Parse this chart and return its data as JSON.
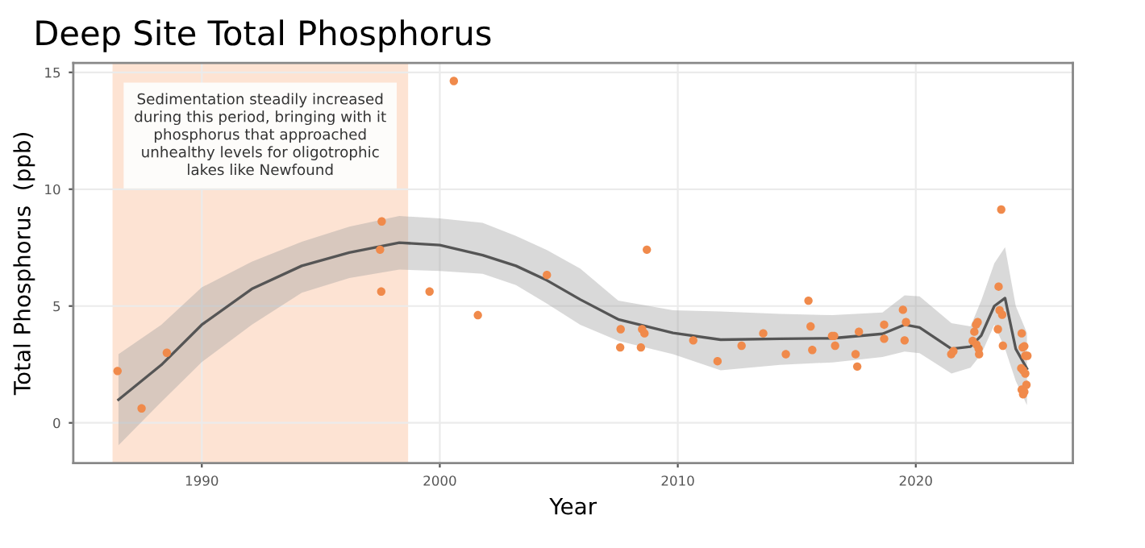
{
  "chart_data": {
    "type": "scatter",
    "title": "Deep Site Total Phosphorus",
    "xlabel": "Year",
    "ylabel": "Total Phosphorus  (ppb)",
    "annotations": [
      "Sedimentation steadily increased\nduring this period, bringing with it\nphosphorus that approached\nunhealthy levels for oligotrophic\nlakes like Newfound"
    ],
    "bands": [
      {
        "axis": "x",
        "from": 1986.25,
        "to": 1998.67,
        "color": "#fde3d3"
      }
    ],
    "xlim": [
      1984.6,
      2026.6
    ],
    "ylim": [
      -1.72,
      15.4
    ],
    "xticks": [
      1990,
      2000,
      2010,
      2020
    ],
    "yticks": [
      0,
      5,
      10,
      15
    ],
    "grid": true,
    "legend": false,
    "series": [
      {
        "marker": "circle",
        "color": "#f08a4b",
        "x": [
          1986.46,
          1987.47,
          1988.53,
          1997.56,
          1997.49,
          1997.54,
          1999.57,
          2000.59,
          2001.6,
          2004.5,
          2007.6,
          2007.58,
          2008.5,
          2008.6,
          2008.45,
          2008.7,
          2010.65,
          2011.67,
          2012.68,
          2013.59,
          2014.54,
          2015.49,
          2015.58,
          2015.65,
          2016.48,
          2016.57,
          2016.61,
          2017.47,
          2017.54,
          2017.61,
          2018.67,
          2018.67,
          2019.46,
          2019.59,
          2019.53,
          2021.49,
          2021.58,
          2022.39,
          2022.46,
          2022.53,
          2022.6,
          2022.55,
          2022.64,
          2022.66,
          2023.48,
          2023.59,
          2023.52,
          2023.63,
          2023.45,
          2023.66,
          2024.45,
          2024.49,
          2024.56,
          2024.6,
          2024.69,
          2024.43,
          2024.51,
          2024.6,
          2024.65,
          2024.45,
          2024.56,
          2024.51
        ],
        "values": [
          2.22,
          0.62,
          3.0,
          8.62,
          7.41,
          5.62,
          5.62,
          14.63,
          4.61,
          6.33,
          4.01,
          3.23,
          4.01,
          3.83,
          3.23,
          7.41,
          3.53,
          2.64,
          3.3,
          3.83,
          2.94,
          5.23,
          4.13,
          3.12,
          3.72,
          3.72,
          3.3,
          2.94,
          2.41,
          3.9,
          4.2,
          3.6,
          4.84,
          4.31,
          3.53,
          2.94,
          3.07,
          3.51,
          3.9,
          4.2,
          4.31,
          3.35,
          3.17,
          2.94,
          5.83,
          9.13,
          4.82,
          4.63,
          4.01,
          3.3,
          3.83,
          3.23,
          3.28,
          2.87,
          2.87,
          2.34,
          2.25,
          2.11,
          1.63,
          1.42,
          1.33,
          1.22
        ]
      },
      {
        "type": "line",
        "color": "#555555",
        "x": [
          1986.5,
          1988.3,
          1990,
          1992.1,
          1994.2,
          1996.2,
          1998.3,
          2000,
          2001.8,
          2003.2,
          2004.5,
          2005.9,
          2007.5,
          2009.8,
          2011.8,
          2014.3,
          2016.5,
          2018.6,
          2019.53,
          2020.16,
          2021.5,
          2022.3,
          2022.75,
          2023.3,
          2023.75,
          2024.2,
          2024.67
        ],
        "values": [
          0.99,
          2.48,
          4.2,
          5.73,
          6.72,
          7.29,
          7.71,
          7.61,
          7.18,
          6.72,
          6.1,
          5.28,
          4.43,
          3.85,
          3.56,
          3.6,
          3.62,
          3.81,
          4.2,
          4.08,
          3.17,
          3.26,
          3.74,
          5.0,
          5.34,
          3.17,
          2.32
        ],
        "lower": [
          -0.96,
          0.9,
          2.6,
          4.2,
          5.57,
          6.2,
          6.56,
          6.5,
          6.38,
          5.9,
          5.1,
          4.2,
          3.51,
          2.94,
          2.25,
          2.48,
          2.59,
          2.82,
          3.05,
          2.98,
          2.11,
          2.36,
          2.94,
          4.2,
          3.17,
          1.79,
          0.76
        ],
        "upper": [
          2.94,
          4.2,
          5.8,
          6.9,
          7.75,
          8.4,
          8.85,
          8.75,
          8.56,
          8.0,
          7.4,
          6.6,
          5.23,
          4.82,
          4.77,
          4.66,
          4.61,
          4.72,
          5.46,
          5.41,
          4.27,
          4.13,
          5.23,
          6.83,
          7.52,
          5.0,
          3.85
        ]
      }
    ]
  }
}
